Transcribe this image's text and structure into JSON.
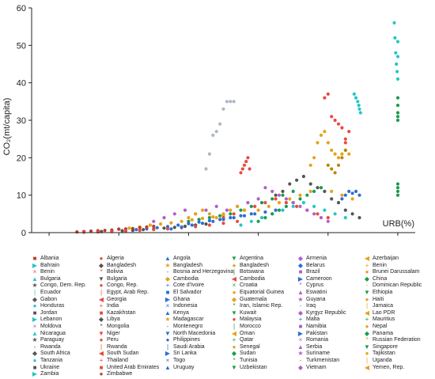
{
  "chart_data": {
    "type": "scatter",
    "xlabel": "URB(%)",
    "ylabel": "CO₂(mt/capita)",
    "xlim": [
      -5,
      105
    ],
    "ylim": [
      0,
      60
    ],
    "x_ticks": [
      "0",
      "20",
      "40",
      "60",
      "80",
      "100"
    ],
    "y_ticks": [
      "0",
      "10",
      "20",
      "30",
      "40",
      "50",
      "60"
    ],
    "grid": false,
    "legend_position": "bottom",
    "legend": [
      {
        "label": "Albania",
        "color": "#c0392b",
        "marker": "■"
      },
      {
        "label": "Algeria",
        "color": "#e74c3c",
        "marker": "●"
      },
      {
        "label": "Angola",
        "color": "#2c6fd1",
        "marker": "▲"
      },
      {
        "label": "Argentina",
        "color": "#1a9c4c",
        "marker": "▼"
      },
      {
        "label": "Armenia",
        "color": "#b05fc4",
        "marker": "◆"
      },
      {
        "label": "Azerbaijan",
        "color": "#e6a21b",
        "marker": "◀"
      },
      {
        "label": "Bahrain",
        "color": "#26c6c6",
        "marker": "▶"
      },
      {
        "label": "Bangladesh",
        "color": "#555555",
        "marker": "◆"
      },
      {
        "label": "Bangladesh",
        "color": "#e6a21b",
        "marker": "★"
      },
      {
        "label": "Bangladesh",
        "color": "#e6a21b",
        "marker": "●"
      },
      {
        "label": "Belarus",
        "color": "#2c6fd1",
        "marker": "◆"
      },
      {
        "label": "Benin",
        "color": "#e6a21b",
        "marker": "+"
      },
      {
        "label": "Benin",
        "color": "#e74c3c",
        "marker": "×"
      },
      {
        "label": "Bolivia",
        "color": "#e74c3c",
        "marker": "*"
      },
      {
        "label": "Bosnia and Herzegovina",
        "color": "#2c6fd1",
        "marker": "-"
      },
      {
        "label": "Botswana",
        "color": "#1a9c4c",
        "marker": "|"
      },
      {
        "label": "Brazil",
        "color": "#b05fc4",
        "marker": "■"
      },
      {
        "label": "Brunei Darussalam",
        "color": "#e6a21b",
        "marker": "●"
      },
      {
        "label": "Bulgaria",
        "color": "#26c6c6",
        "marker": "▲"
      },
      {
        "label": "Bulgaria",
        "color": "#555555",
        "marker": "▼"
      },
      {
        "label": "Cambodia",
        "color": "#e6a21b",
        "marker": "◆"
      },
      {
        "label": "Cambodia",
        "color": "#e74c3c",
        "marker": "◀"
      },
      {
        "label": "Cameroon",
        "color": "#2c6fd1",
        "marker": "▶"
      },
      {
        "label": "China",
        "color": "#1a9c4c",
        "marker": "◆"
      },
      {
        "label": "Congo, Dem. Rep.",
        "color": "#555555",
        "marker": "★"
      },
      {
        "label": "Congo, Rep.",
        "color": "#e74c3c",
        "marker": "●"
      },
      {
        "label": "Cote d'Ivoire",
        "color": "#2c6fd1",
        "marker": "+"
      },
      {
        "label": "Croatia",
        "color": "#1a9c4c",
        "marker": "×"
      },
      {
        "label": "Cyprus",
        "color": "#b05fc4",
        "marker": "*"
      },
      {
        "label": "Dominican Republic",
        "color": "#e6a21b",
        "marker": "-"
      },
      {
        "label": "Ecuador",
        "color": "#26c6c6",
        "marker": "|"
      },
      {
        "label": "Egypt, Arab Rep.",
        "color": "#e74c3c",
        "marker": "|"
      },
      {
        "label": "El Salvador",
        "color": "#2c6fd1",
        "marker": "■"
      },
      {
        "label": "Equatorial Guinea",
        "color": "#e6a21b",
        "marker": "●"
      },
      {
        "label": "Eswatini",
        "color": "#b05fc4",
        "marker": "▲"
      },
      {
        "label": "Ethiopia",
        "color": "#1a9c4c",
        "marker": "▼"
      },
      {
        "label": "Gabon",
        "color": "#555555",
        "marker": "◆"
      },
      {
        "label": "Georgia",
        "color": "#e74c3c",
        "marker": "◀"
      },
      {
        "label": "Ghana",
        "color": "#2c6fd1",
        "marker": "▶"
      },
      {
        "label": "Guatemala",
        "color": "#e6a21b",
        "marker": "◆"
      },
      {
        "label": "Guyana",
        "color": "#b05fc4",
        "marker": "★"
      },
      {
        "label": "Haiti",
        "color": "#e6a21b",
        "marker": "●"
      },
      {
        "label": "Honduras",
        "color": "#26c6c6",
        "marker": "●"
      },
      {
        "label": "India",
        "color": "#e74c3c",
        "marker": "+"
      },
      {
        "label": "Indonesia",
        "color": "#2c6fd1",
        "marker": "×"
      },
      {
        "label": "Iran, Islamic Rep.",
        "color": "#1a9c4c",
        "marker": "*"
      },
      {
        "label": "Iraq",
        "color": "#b05fc4",
        "marker": "-"
      },
      {
        "label": "Jamaica",
        "color": "#e6a21b",
        "marker": "|"
      },
      {
        "label": "Jordan",
        "color": "#555555",
        "marker": "■"
      },
      {
        "label": "Kazakhstan",
        "color": "#e74c3c",
        "marker": "■"
      },
      {
        "label": "Kenya",
        "color": "#2c6fd1",
        "marker": "▲"
      },
      {
        "label": "Kuwait",
        "color": "#1a9c4c",
        "marker": "▼"
      },
      {
        "label": "Kyrgyz Republic",
        "color": "#b05fc4",
        "marker": "◆"
      },
      {
        "label": "Lao PDR",
        "color": "#e6a21b",
        "marker": "◀"
      },
      {
        "label": "Lebanon",
        "color": "#26c6c6",
        "marker": "▶"
      },
      {
        "label": "Libya",
        "color": "#555555",
        "marker": "◆"
      },
      {
        "label": "Madagascar",
        "color": "#e6a21b",
        "marker": "★"
      },
      {
        "label": "Malaysia",
        "color": "#e74c3c",
        "marker": "●"
      },
      {
        "label": "Malta",
        "color": "#2c6fd1",
        "marker": "+"
      },
      {
        "label": "Mauritius",
        "color": "#1a9c4c",
        "marker": "+"
      },
      {
        "label": "Moldova",
        "color": "#b05fc4",
        "marker": "×"
      },
      {
        "label": "Mongolia",
        "color": "#555555",
        "marker": "*"
      },
      {
        "label": "Montenegro",
        "color": "#2c6fd1",
        "marker": "-"
      },
      {
        "label": "Morocco",
        "color": "#1a9c4c",
        "marker": "|"
      },
      {
        "label": "Namibia",
        "color": "#b05fc4",
        "marker": "■"
      },
      {
        "label": "Nepal",
        "color": "#e6a21b",
        "marker": "●"
      },
      {
        "label": "Nicaragua",
        "color": "#26c6c6",
        "marker": "▲"
      },
      {
        "label": "Niger",
        "color": "#e74c3c",
        "marker": "▼"
      },
      {
        "label": "North Macedonia",
        "color": "#2c6fd1",
        "marker": "▼"
      },
      {
        "label": "Oman",
        "color": "#e6a21b",
        "marker": "◀"
      },
      {
        "label": "Pakistan",
        "color": "#2c6fd1",
        "marker": "▶"
      },
      {
        "label": "Panama",
        "color": "#1a9c4c",
        "marker": "◆"
      },
      {
        "label": "Paraguay",
        "color": "#555555",
        "marker": "★"
      },
      {
        "label": "Peru",
        "color": "#e74c3c",
        "marker": "●"
      },
      {
        "label": "Philippines",
        "color": "#2c6fd1",
        "marker": "●"
      },
      {
        "label": "Qatar",
        "color": "#1a9c4c",
        "marker": "+"
      },
      {
        "label": "Romania",
        "color": "#b05fc4",
        "marker": "×"
      },
      {
        "label": "Russian Federation",
        "color": "#e6a21b",
        "marker": "*"
      },
      {
        "label": "Rwanda",
        "color": "#555555",
        "marker": "-"
      },
      {
        "label": "Rwanda",
        "color": "#e74c3c",
        "marker": "|"
      },
      {
        "label": "Saudi Arabia",
        "color": "#2c6fd1",
        "marker": "|"
      },
      {
        "label": "Senegal",
        "color": "#e6a21b",
        "marker": "●"
      },
      {
        "label": "Serbia",
        "color": "#b05fc4",
        "marker": "▲"
      },
      {
        "label": "Singapore",
        "color": "#1a9c4c",
        "marker": "▼"
      },
      {
        "label": "South Africa",
        "color": "#555555",
        "marker": "◆"
      },
      {
        "label": "South Sudan",
        "color": "#e74c3c",
        "marker": "◀"
      },
      {
        "label": "Sri Lanka",
        "color": "#2c6fd1",
        "marker": "▶"
      },
      {
        "label": "Sudan",
        "color": "#1a9c4c",
        "marker": "◆"
      },
      {
        "label": "Suriname",
        "color": "#b05fc4",
        "marker": "★"
      },
      {
        "label": "Tajikistan",
        "color": "#e6a21b",
        "marker": "●"
      },
      {
        "label": "Tanzania",
        "color": "#26c6c6",
        "marker": "●"
      },
      {
        "label": "Thailand",
        "color": "#e74c3c",
        "marker": "+"
      },
      {
        "label": "Togo",
        "color": "#2c6fd1",
        "marker": "×"
      },
      {
        "label": "Tunisia",
        "color": "#1a9c4c",
        "marker": "*"
      },
      {
        "label": "Turkmenistan",
        "color": "#b05fc4",
        "marker": "-"
      },
      {
        "label": "Uganda",
        "color": "#e6a21b",
        "marker": "|"
      },
      {
        "label": "Ukraine",
        "color": "#555555",
        "marker": "■"
      },
      {
        "label": "United Arab Emirates",
        "color": "#e74c3c",
        "marker": "■"
      },
      {
        "label": "Uruguay",
        "color": "#2c6fd1",
        "marker": "▲"
      },
      {
        "label": "Uzbekistan",
        "color": "#1a9c4c",
        "marker": "▼"
      },
      {
        "label": "Vietnam",
        "color": "#b05fc4",
        "marker": "◆"
      },
      {
        "label": "Yemen, Rep.",
        "color": "#e6a21b",
        "marker": "◀"
      },
      {
        "label": "Zambia",
        "color": "#26c6c6",
        "marker": "▶"
      },
      {
        "label": "Zimbabwe",
        "color": "#c0392b",
        "marker": "●"
      }
    ],
    "series": [
      {
        "color": "#26c6c6",
        "x": [
          99,
          99.2,
          99.4,
          99.6,
          99.8,
          100,
          100,
          100
        ],
        "y": [
          56,
          52,
          48,
          45,
          43,
          51,
          47,
          41
        ]
      },
      {
        "color": "#1a9c4c",
        "x": [
          100,
          100,
          100,
          100,
          100,
          100,
          100,
          100,
          100
        ],
        "y": [
          36,
          34,
          32,
          31,
          30,
          13,
          12,
          11,
          10
        ]
      },
      {
        "color": "#26c6c6",
        "x": [
          87.5,
          88,
          88.5,
          88.8,
          89,
          89.3
        ],
        "y": [
          37,
          36,
          35,
          34,
          33,
          32
        ]
      },
      {
        "color": "#e74c3c",
        "x": [
          79,
          80,
          81,
          82,
          83,
          84,
          85,
          86,
          85
        ],
        "y": [
          36,
          37,
          31,
          30,
          29,
          28,
          25,
          27,
          24
        ]
      },
      {
        "color": "#2c6fd1",
        "x": [
          84,
          85,
          86,
          87,
          88,
          89
        ],
        "y": [
          9,
          10,
          11,
          10.5,
          11,
          10
        ]
      },
      {
        "color": "#aab8c8",
        "x": [
          45,
          46,
          47,
          48,
          49,
          50,
          51,
          52,
          53
        ],
        "y": [
          17,
          21,
          26,
          27,
          29,
          33,
          35,
          35,
          35
        ]
      },
      {
        "color": "#e74c3c",
        "x": [
          55,
          55.5,
          56,
          56.5,
          57,
          57.5
        ],
        "y": [
          16,
          17,
          18,
          19,
          20,
          17
        ]
      },
      {
        "color": "#555555",
        "x": [
          65,
          67,
          69,
          71,
          73,
          75,
          77,
          79,
          81,
          83,
          85,
          87,
          89
        ],
        "y": [
          10,
          11,
          13,
          14,
          15,
          13,
          12,
          11,
          9,
          8,
          6,
          5,
          4
        ]
      },
      {
        "color": "#e6a21b",
        "x": [
          75,
          76,
          77,
          78,
          79,
          80,
          81,
          82,
          83,
          84,
          85,
          86
        ],
        "y": [
          18,
          20,
          24,
          26,
          27,
          24,
          22,
          21,
          20,
          21,
          22,
          21
        ]
      },
      {
        "color": "#b8860b",
        "x": [
          80,
          81,
          82,
          83,
          84,
          85
        ],
        "y": [
          18,
          17,
          16,
          18,
          20,
          22
        ]
      },
      {
        "color": "#b05fc4",
        "x": [
          30,
          33,
          36,
          39,
          42,
          45,
          48,
          51,
          54,
          57,
          60
        ],
        "y": [
          3,
          4,
          5,
          6,
          5,
          6,
          7,
          6,
          7,
          8,
          9
        ]
      },
      {
        "color": "#1a9c4c",
        "x": [
          40,
          43,
          46,
          49,
          52,
          55,
          58,
          61,
          64,
          67,
          70
        ],
        "y": [
          3,
          3.5,
          4,
          4.5,
          5,
          6,
          7,
          8,
          9,
          10,
          11
        ]
      },
      {
        "color": "#e6a21b",
        "x": [
          20,
          23,
          26,
          29,
          32,
          35,
          38,
          41,
          44,
          47,
          50
        ],
        "y": [
          1,
          1.2,
          1.5,
          2,
          2.3,
          2.6,
          3,
          3.4,
          3.8,
          4.2,
          4.6
        ]
      },
      {
        "color": "#2c6fd1",
        "x": [
          25,
          28,
          31,
          34,
          37,
          40,
          43,
          46,
          49,
          52,
          55,
          58
        ],
        "y": [
          0.8,
          1,
          1.3,
          1.6,
          2,
          2.4,
          2.8,
          3.2,
          3.5,
          4,
          4.5,
          5
        ]
      },
      {
        "color": "#e74c3c",
        "x": [
          50,
          53,
          56,
          59,
          62,
          65,
          68,
          71,
          74,
          77,
          80
        ],
        "y": [
          4,
          5,
          6,
          7,
          8,
          9,
          8,
          7,
          6,
          5,
          4
        ]
      },
      {
        "color": "#26c6c6",
        "x": [
          55,
          58,
          61,
          64,
          67,
          70,
          73,
          76,
          79,
          82,
          85
        ],
        "y": [
          2,
          3,
          4,
          5,
          6,
          7,
          8,
          7,
          6,
          5,
          4
        ]
      },
      {
        "color": "#c0392b",
        "x": [
          8,
          10,
          12,
          14,
          16,
          18,
          20,
          22,
          24,
          26,
          28,
          30
        ],
        "y": [
          0.2,
          0.3,
          0.4,
          0.5,
          0.6,
          0.7,
          0.9,
          1,
          1.1,
          1.3,
          1.5,
          1.7
        ]
      },
      {
        "color": "#555555",
        "x": [
          15,
          18,
          21,
          24,
          27,
          30,
          33,
          36,
          39,
          42,
          45
        ],
        "y": [
          0.3,
          0.4,
          0.5,
          0.6,
          0.8,
          1,
          1.2,
          1.4,
          1.7,
          2,
          2.3
        ]
      },
      {
        "color": "#e6a21b",
        "x": [
          60,
          63,
          66,
          69,
          72,
          75,
          78,
          81,
          84,
          87
        ],
        "y": [
          6,
          7,
          8,
          9,
          10,
          11,
          12,
          11,
          10,
          9
        ]
      },
      {
        "color": "#e74c3c",
        "x": [
          10,
          14,
          18,
          22,
          26,
          30,
          34,
          38,
          42,
          46,
          50,
          54
        ],
        "y": [
          0.1,
          0.2,
          0.3,
          0.4,
          0.6,
          0.8,
          1,
          1.3,
          1.6,
          2,
          2.5,
          3
        ]
      },
      {
        "color": "#1a9c4c",
        "x": [
          60,
          62,
          64,
          66,
          68,
          70,
          72,
          74,
          76,
          78
        ],
        "y": [
          3,
          4,
          5,
          6,
          7,
          8,
          9,
          10,
          11,
          12
        ]
      },
      {
        "color": "#b05fc4",
        "x": [
          62,
          64,
          66,
          68,
          70,
          72,
          74,
          76,
          78,
          80
        ],
        "y": [
          12,
          11,
          10,
          9,
          8,
          7,
          6,
          5,
          4,
          3
        ]
      },
      {
        "color": "#2c6fd1",
        "x": [
          35,
          38,
          41,
          44,
          47,
          50,
          53,
          56,
          59,
          62,
          65
        ],
        "y": [
          1,
          1.5,
          2,
          2.5,
          3,
          3.5,
          4,
          4.5,
          5,
          5.5,
          6
        ]
      },
      {
        "color": "#e6a21b",
        "x": [
          40,
          42,
          44,
          46,
          48,
          50,
          52,
          54,
          56
        ],
        "y": [
          4,
          5,
          6,
          5,
          4,
          5,
          6,
          7,
          6
        ]
      }
    ]
  }
}
